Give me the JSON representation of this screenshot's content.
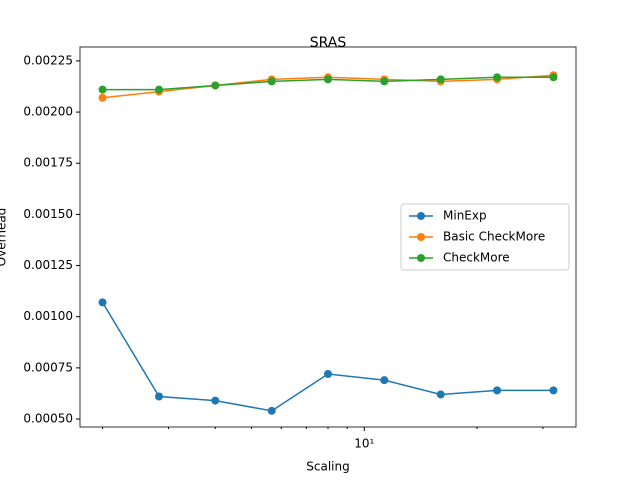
{
  "chart_data": {
    "type": "line",
    "title": "SRAS",
    "xlabel": "Scaling",
    "ylabel": "Overhead",
    "x": [
      2,
      2.83,
      4,
      5.66,
      8,
      11.31,
      16,
      22.63,
      32
    ],
    "xscale": "log",
    "xlim": [
      1.741,
      36.76
    ],
    "xticks": [
      {
        "value": 10,
        "label": "10¹"
      }
    ],
    "xminorticks": [
      2,
      3,
      4,
      5,
      6,
      7,
      8,
      9,
      20,
      30
    ],
    "ylim": [
      0.000461,
      0.002318
    ],
    "yticks": [
      {
        "value": 0.0005,
        "label": "0.00050"
      },
      {
        "value": 0.00075,
        "label": "0.00075"
      },
      {
        "value": 0.001,
        "label": "0.00100"
      },
      {
        "value": 0.00125,
        "label": "0.00125"
      },
      {
        "value": 0.0015,
        "label": "0.00150"
      },
      {
        "value": 0.00175,
        "label": "0.00175"
      },
      {
        "value": 0.002,
        "label": "0.00200"
      },
      {
        "value": 0.00225,
        "label": "0.00225"
      }
    ],
    "legend": "center right",
    "series": [
      {
        "name": "MinExp",
        "color": "#1f77b4",
        "values": [
          0.00107,
          0.00061,
          0.00059,
          0.00054,
          0.00072,
          0.00069,
          0.00062,
          0.00064,
          0.00064
        ]
      },
      {
        "name": "Basic CheckMore",
        "color": "#ff7f0e",
        "values": [
          0.00207,
          0.0021,
          0.00213,
          0.00216,
          0.00217,
          0.00216,
          0.00215,
          0.00216,
          0.00218
        ]
      },
      {
        "name": "CheckMore",
        "color": "#2ca02c",
        "values": [
          0.00211,
          0.00211,
          0.00213,
          0.00215,
          0.00216,
          0.00215,
          0.00216,
          0.00217,
          0.00217
        ]
      }
    ]
  }
}
